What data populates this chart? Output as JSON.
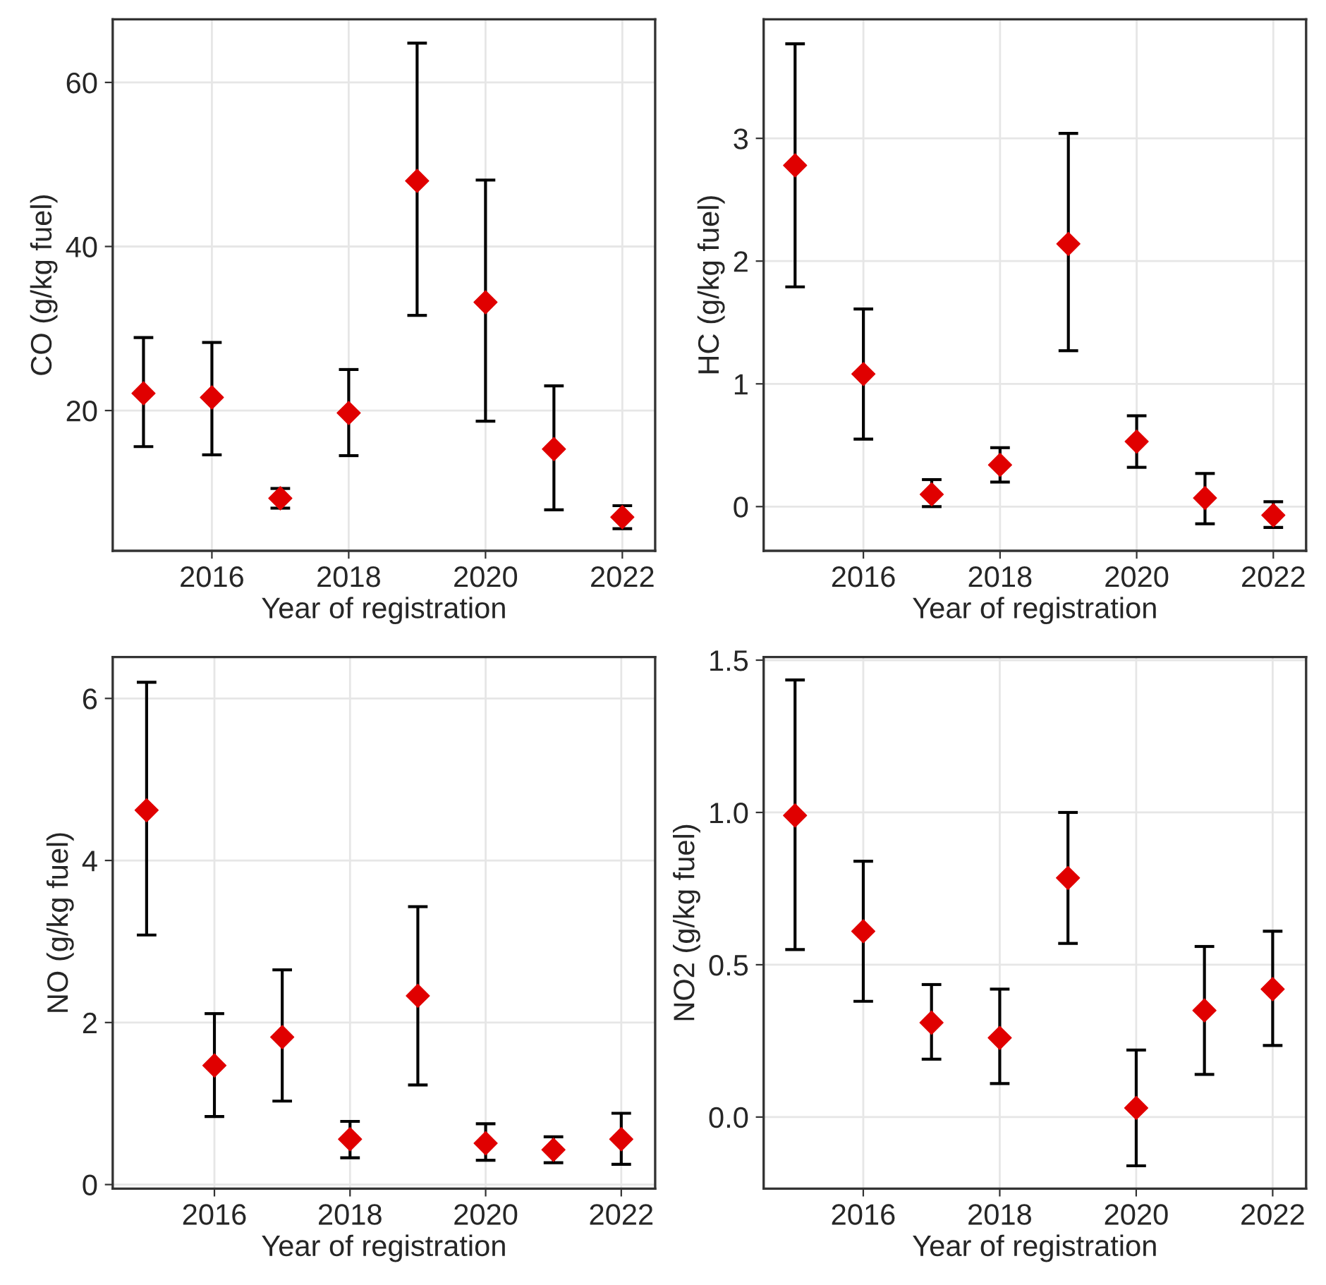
{
  "chart_data": [
    {
      "type": "scatter",
      "xlabel": "Year of registration",
      "ylabel": "CO (g/kg fuel)",
      "x": [
        2015,
        2016,
        2017,
        2018,
        2019,
        2020,
        2021,
        2022
      ],
      "xlim": [
        2014.55,
        2022.48
      ],
      "xticks": [
        2016,
        2018,
        2020,
        2022
      ],
      "ylim": [
        2.9,
        67.7
      ],
      "yticks": [
        20,
        40,
        60
      ],
      "grid": true,
      "marker": "diamond",
      "series": [
        {
          "color": "#e00000",
          "values": [
            22.1,
            21.6,
            9.3,
            19.7,
            48.0,
            33.2,
            15.3,
            7.0
          ],
          "errors": [
            [
              15.6,
              28.9
            ],
            [
              14.6,
              28.3
            ],
            [
              8.1,
              10.5
            ],
            [
              14.5,
              25.0
            ],
            [
              31.6,
              64.8
            ],
            [
              18.7,
              48.1
            ],
            [
              7.9,
              23.0
            ],
            [
              5.6,
              8.4
            ]
          ]
        }
      ]
    },
    {
      "type": "scatter",
      "xlabel": "Year of registration",
      "ylabel": "HC (g/kg fuel)",
      "x": [
        2015,
        2016,
        2017,
        2018,
        2019,
        2020,
        2021,
        2022
      ],
      "xlim": [
        2014.54,
        2022.48
      ],
      "xticks": [
        2016,
        2018,
        2020,
        2022
      ],
      "ylim": [
        -0.36,
        3.97
      ],
      "yticks": [
        0,
        1,
        2,
        3
      ],
      "grid": true,
      "marker": "diamond",
      "series": [
        {
          "color": "#e00000",
          "values": [
            2.78,
            1.08,
            0.1,
            0.34,
            2.14,
            0.53,
            0.07,
            -0.07
          ],
          "errors": [
            [
              1.79,
              3.77
            ],
            [
              0.55,
              1.61
            ],
            [
              0.0,
              0.22
            ],
            [
              0.2,
              0.48
            ],
            [
              1.27,
              3.04
            ],
            [
              0.32,
              0.74
            ],
            [
              -0.14,
              0.27
            ],
            [
              -0.17,
              0.04
            ]
          ]
        }
      ]
    },
    {
      "type": "scatter",
      "xlabel": "Year of registration",
      "ylabel": "NO (g/kg fuel)",
      "x": [
        2015,
        2016,
        2017,
        2018,
        2019,
        2020,
        2021,
        2022
      ],
      "xlim": [
        2014.5,
        2022.5
      ],
      "xticks": [
        2016,
        2018,
        2020,
        2022
      ],
      "ylim": [
        -0.05,
        6.51
      ],
      "yticks": [
        0,
        2,
        4,
        6
      ],
      "grid": true,
      "marker": "diamond",
      "series": [
        {
          "color": "#e00000",
          "values": [
            4.62,
            1.47,
            1.82,
            0.56,
            2.33,
            0.51,
            0.43,
            0.56
          ],
          "errors": [
            [
              3.08,
              6.2
            ],
            [
              0.84,
              2.11
            ],
            [
              1.03,
              2.65
            ],
            [
              0.33,
              0.78
            ],
            [
              1.23,
              3.43
            ],
            [
              0.3,
              0.75
            ],
            [
              0.27,
              0.59
            ],
            [
              0.25,
              0.88
            ]
          ]
        }
      ]
    },
    {
      "type": "scatter",
      "xlabel": "Year of registration",
      "ylabel": "NO2 (g/kg fuel)",
      "x": [
        2015,
        2016,
        2017,
        2018,
        2019,
        2020,
        2021,
        2022
      ],
      "xlim": [
        2014.54,
        2022.49
      ],
      "xticks": [
        2016,
        2018,
        2020,
        2022
      ],
      "ylim": [
        -0.235,
        1.51
      ],
      "yticks": [
        {
          "value": 0,
          "label": "0.0"
        },
        {
          "value": 0.5,
          "label": "0.5"
        },
        {
          "value": 1,
          "label": "1.0"
        },
        {
          "value": 1.5,
          "label": "1.5"
        }
      ],
      "grid": true,
      "marker": "diamond",
      "series": [
        {
          "color": "#e00000",
          "values": [
            0.99,
            0.61,
            0.31,
            0.26,
            0.785,
            0.03,
            0.35,
            0.42
          ],
          "errors": [
            [
              0.55,
              1.435
            ],
            [
              0.38,
              0.84
            ],
            [
              0.19,
              0.435
            ],
            [
              0.11,
              0.42
            ],
            [
              0.57,
              1.0
            ],
            [
              -0.16,
              0.22
            ],
            [
              0.14,
              0.56
            ],
            [
              0.235,
              0.61
            ]
          ]
        }
      ]
    }
  ]
}
